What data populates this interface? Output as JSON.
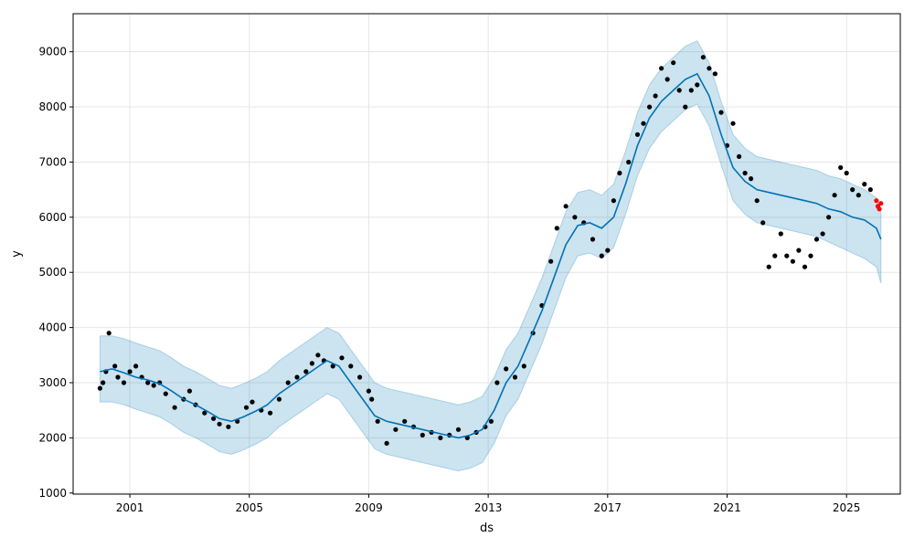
{
  "chart_data": {
    "type": "line",
    "title": "",
    "xlabel": "ds",
    "ylabel": "y",
    "xlim": [
      1999.1,
      2026.8
    ],
    "ylim": [
      980,
      9690
    ],
    "grid": true,
    "x_ticks": [
      2001,
      2005,
      2009,
      2013,
      2017,
      2021,
      2025
    ],
    "x_tick_labels": [
      "2001",
      "2005",
      "2009",
      "2013",
      "2017",
      "2021",
      "2025"
    ],
    "y_ticks": [
      1000,
      2000,
      3000,
      4000,
      5000,
      6000,
      7000,
      8000,
      9000
    ],
    "y_tick_labels": [
      "1000",
      "2000",
      "3000",
      "4000",
      "5000",
      "6000",
      "7000",
      "8000",
      "9000"
    ],
    "colors": {
      "observed": "#000000",
      "forecast_line": "#0072B2",
      "uncertainty_band": "#0072B2",
      "future_actual": "#ff0000",
      "grid": "#e6e6e6"
    },
    "forecast": {
      "x": [
        2000.0,
        2000.4,
        2000.8,
        2001.2,
        2001.6,
        2002.0,
        2002.4,
        2002.8,
        2003.2,
        2003.6,
        2004.0,
        2004.4,
        2004.8,
        2005.2,
        2005.6,
        2006.0,
        2006.4,
        2006.8,
        2007.2,
        2007.6,
        2008.0,
        2008.4,
        2008.8,
        2009.2,
        2009.6,
        2010.0,
        2010.4,
        2010.8,
        2011.2,
        2011.6,
        2012.0,
        2012.4,
        2012.8,
        2013.2,
        2013.6,
        2014.0,
        2014.4,
        2014.8,
        2015.2,
        2015.6,
        2016.0,
        2016.4,
        2016.8,
        2017.2,
        2017.6,
        2018.0,
        2018.4,
        2018.8,
        2019.2,
        2019.6,
        2020.0,
        2020.4,
        2020.8,
        2021.2,
        2021.6,
        2022.0,
        2022.4,
        2022.8,
        2023.2,
        2023.6,
        2024.0,
        2024.4,
        2024.8,
        2025.2,
        2025.6,
        2026.0,
        2026.15
      ],
      "yhat": [
        3200,
        3250,
        3180,
        3100,
        3050,
        2980,
        2850,
        2700,
        2600,
        2480,
        2350,
        2300,
        2380,
        2480,
        2600,
        2800,
        2950,
        3100,
        3250,
        3400,
        3300,
        3000,
        2700,
        2400,
        2300,
        2250,
        2200,
        2150,
        2100,
        2050,
        2000,
        2050,
        2150,
        2500,
        3000,
        3300,
        3800,
        4300,
        4900,
        5500,
        5850,
        5900,
        5800,
        6000,
        6600,
        7300,
        7800,
        8100,
        8300,
        8500,
        8600,
        8200,
        7500,
        6900,
        6650,
        6500,
        6450,
        6400,
        6350,
        6300,
        6250,
        6150,
        6100,
        6000,
        5950,
        5800,
        5600
      ],
      "yhat_lower": [
        2650,
        2650,
        2600,
        2520,
        2450,
        2380,
        2250,
        2100,
        2000,
        1880,
        1750,
        1700,
        1780,
        1880,
        2000,
        2200,
        2350,
        2500,
        2650,
        2800,
        2700,
        2400,
        2100,
        1800,
        1700,
        1650,
        1600,
        1550,
        1500,
        1450,
        1400,
        1450,
        1550,
        1900,
        2400,
        2700,
        3200,
        3700,
        4300,
        4900,
        5300,
        5350,
        5250,
        5450,
        6050,
        6750,
        7250,
        7550,
        7750,
        7950,
        8050,
        7650,
        6950,
        6300,
        6050,
        5900,
        5850,
        5800,
        5750,
        5700,
        5650,
        5550,
        5450,
        5350,
        5250,
        5100,
        4800
      ],
      "yhat_upper": [
        3850,
        3850,
        3800,
        3720,
        3650,
        3580,
        3450,
        3300,
        3200,
        3080,
        2950,
        2900,
        2980,
        3080,
        3200,
        3400,
        3550,
        3700,
        3850,
        4000,
        3900,
        3600,
        3300,
        3000,
        2900,
        2850,
        2800,
        2750,
        2700,
        2650,
        2600,
        2650,
        2750,
        3100,
        3600,
        3900,
        4400,
        4900,
        5500,
        6100,
        6450,
        6500,
        6400,
        6600,
        7200,
        7900,
        8400,
        8700,
        8900,
        9100,
        9200,
        8800,
        8100,
        7500,
        7250,
        7100,
        7050,
        7000,
        6950,
        6900,
        6850,
        6750,
        6700,
        6600,
        6500,
        6350,
        6100
      ]
    },
    "observed": {
      "x": [
        2000.0,
        2000.1,
        2000.2,
        2000.3,
        2000.5,
        2000.6,
        2000.8,
        2001.0,
        2001.2,
        2001.4,
        2001.6,
        2001.8,
        2002.0,
        2002.2,
        2002.5,
        2002.8,
        2003.0,
        2003.2,
        2003.5,
        2003.8,
        2004.0,
        2004.3,
        2004.6,
        2004.9,
        2005.1,
        2005.4,
        2005.7,
        2006.0,
        2006.3,
        2006.6,
        2006.9,
        2007.1,
        2007.3,
        2007.5,
        2007.8,
        2008.1,
        2008.4,
        2008.7,
        2009.0,
        2009.1,
        2009.3,
        2009.6,
        2009.9,
        2010.2,
        2010.5,
        2010.8,
        2011.1,
        2011.4,
        2011.7,
        2012.0,
        2012.3,
        2012.6,
        2012.9,
        2013.1,
        2013.3,
        2013.6,
        2013.9,
        2014.2,
        2014.5,
        2014.8,
        2015.1,
        2015.3,
        2015.6,
        2015.9,
        2016.2,
        2016.5,
        2016.8,
        2017.0,
        2017.2,
        2017.4,
        2017.7,
        2018.0,
        2018.2,
        2018.4,
        2018.6,
        2018.8,
        2019.0,
        2019.2,
        2019.4,
        2019.6,
        2019.8,
        2020.0,
        2020.2,
        2020.4,
        2020.6,
        2020.8,
        2021.0,
        2021.2,
        2021.4,
        2021.6,
        2021.8,
        2022.0,
        2022.2,
        2022.4,
        2022.6,
        2022.8,
        2023.0,
        2023.2,
        2023.4,
        2023.6,
        2023.8,
        2024.0,
        2024.2,
        2024.4,
        2024.6,
        2024.8,
        2025.0,
        2025.2,
        2025.4,
        2025.6,
        2025.8
      ],
      "y": [
        2900,
        3000,
        3200,
        3900,
        3300,
        3100,
        3000,
        3200,
        3300,
        3100,
        3000,
        2950,
        3000,
        2800,
        2550,
        2700,
        2850,
        2600,
        2450,
        2350,
        2250,
        2200,
        2300,
        2550,
        2650,
        2500,
        2450,
        2700,
        3000,
        3100,
        3200,
        3350,
        3500,
        3400,
        3300,
        3450,
        3300,
        3100,
        2850,
        2700,
        2300,
        1900,
        2150,
        2300,
        2200,
        2050,
        2100,
        2000,
        2050,
        2150,
        2000,
        2100,
        2200,
        2300,
        3000,
        3250,
        3100,
        3300,
        3900,
        4400,
        5200,
        5800,
        6200,
        6000,
        5900,
        5600,
        5300,
        5400,
        6300,
        6800,
        7000,
        7500,
        7700,
        8000,
        8200,
        8700,
        8500,
        8800,
        8300,
        8000,
        8300,
        8400,
        8900,
        8700,
        8600,
        7900,
        7300,
        7700,
        7100,
        6800,
        6700,
        6300,
        5900,
        5100,
        5300,
        5700,
        5300,
        5200,
        5400,
        5100,
        5300,
        5600,
        5700,
        6000,
        6400,
        6900,
        6800,
        6500,
        6400,
        6600,
        6500
      ]
    },
    "future_actual": {
      "x": [
        2026.0,
        2026.05,
        2026.1,
        2026.15
      ],
      "y": [
        6300,
        6200,
        6150,
        6250
      ]
    }
  }
}
